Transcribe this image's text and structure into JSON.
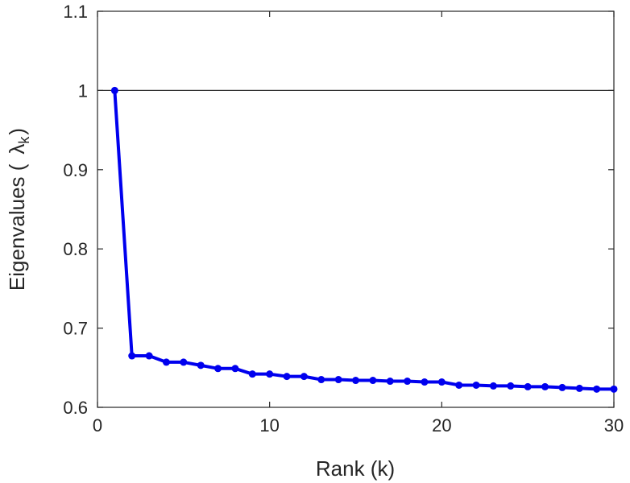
{
  "chart_data": {
    "type": "line",
    "xlabel": "Rank (k)",
    "ylabel_main": "Eigenvalues (",
    "ylabel_symbol": "λ",
    "ylabel_subscript": "k",
    "ylabel_close": ")",
    "xlim": [
      0,
      30
    ],
    "ylim": [
      0.6,
      1.1
    ],
    "x_ticks": [
      0,
      10,
      20,
      30
    ],
    "x_tick_labels": [
      "0",
      "10",
      "20",
      "30"
    ],
    "y_ticks": [
      0.6,
      0.7,
      0.8,
      0.9,
      1.0,
      1.1
    ],
    "y_tick_labels": [
      "0.6",
      "0.7",
      "0.8",
      "0.9",
      "1",
      "1.1"
    ],
    "reference_line_y": 1.0,
    "grid": false,
    "series": [
      {
        "color": "#0000ee",
        "marker": "circle",
        "x": [
          1,
          2,
          3,
          4,
          5,
          6,
          7,
          8,
          9,
          10,
          11,
          12,
          13,
          14,
          15,
          16,
          17,
          18,
          19,
          20,
          21,
          22,
          23,
          24,
          25,
          26,
          27,
          28,
          29,
          30
        ],
        "y": [
          1.0,
          0.665,
          0.665,
          0.657,
          0.657,
          0.653,
          0.649,
          0.649,
          0.642,
          0.642,
          0.639,
          0.639,
          0.635,
          0.635,
          0.634,
          0.634,
          0.633,
          0.633,
          0.632,
          0.632,
          0.628,
          0.628,
          0.627,
          0.627,
          0.626,
          0.626,
          0.625,
          0.624,
          0.623,
          0.623
        ]
      }
    ]
  }
}
